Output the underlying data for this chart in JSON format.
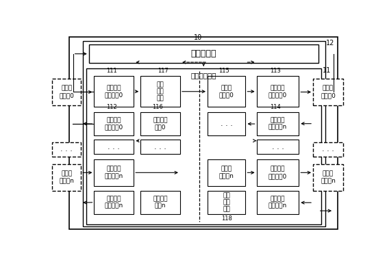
{
  "bg_color": "#ffffff",
  "outer_label": "10",
  "inner_label": "12",
  "bus_label": "11",
  "protocol_pool_text": "协议事务池",
  "bus_model_text": "互联总线模型",
  "component_labels": {
    "111": "111",
    "112": "112",
    "113": "113",
    "114": "114",
    "115": "115",
    "116": "116",
    "117": "117",
    "118": "118"
  }
}
